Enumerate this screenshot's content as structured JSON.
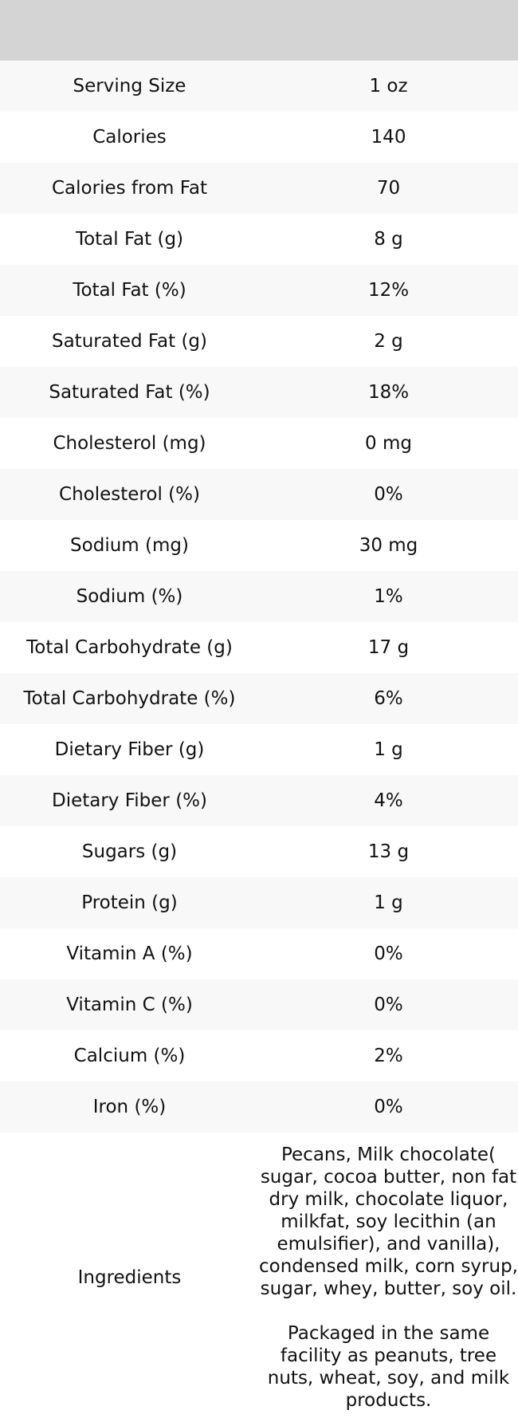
{
  "header": {
    "title": ""
  },
  "rows": [
    {
      "label": "Serving Size",
      "value": "1 oz"
    },
    {
      "label": "Calories",
      "value": "140"
    },
    {
      "label": "Calories from Fat",
      "value": "70"
    },
    {
      "label": "Total Fat (g)",
      "value": "8 g"
    },
    {
      "label": "Total Fat (%)",
      "value": "12%"
    },
    {
      "label": "Saturated Fat (g)",
      "value": "2 g"
    },
    {
      "label": "Saturated Fat (%)",
      "value": "18%"
    },
    {
      "label": "Cholesterol (mg)",
      "value": "0 mg"
    },
    {
      "label": "Cholesterol (%)",
      "value": "0%"
    },
    {
      "label": "Sodium (mg)",
      "value": "30 mg"
    },
    {
      "label": "Sodium (%)",
      "value": "1%"
    },
    {
      "label": "Total Carbohydrate (g)",
      "value": "17 g"
    },
    {
      "label": "Total Carbohydrate (%)",
      "value": "6%"
    },
    {
      "label": "Dietary Fiber (g)",
      "value": "1 g"
    },
    {
      "label": "Dietary Fiber (%)",
      "value": "4%"
    },
    {
      "label": "Sugars (g)",
      "value": "13 g"
    },
    {
      "label": "Protein (g)",
      "value": "1 g"
    },
    {
      "label": "Vitamin A (%)",
      "value": "0%"
    },
    {
      "label": "Vitamin C (%)",
      "value": "0%"
    },
    {
      "label": "Calcium (%)",
      "value": "2%"
    },
    {
      "label": "Iron (%)",
      "value": "0%"
    }
  ],
  "ingredients": {
    "label": "Ingredients",
    "value": "Pecans, Milk chocolate( sugar, cocoa butter, non fat dry milk, chocolate liquor, milkfat, soy lecithin (an emulsifier), and vanilla), condensed milk, corn syrup, sugar, whey, butter, soy oil.\n\nPackaged in the same facility as peanuts, tree nuts, wheat, soy, and milk products."
  }
}
